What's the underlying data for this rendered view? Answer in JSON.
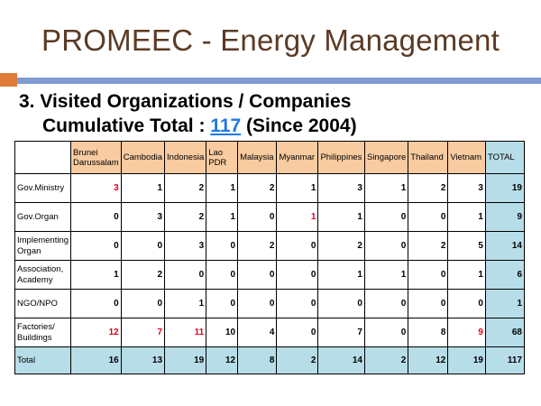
{
  "title": "PROMEEC - Energy Management",
  "subtitle": {
    "line1": "3. Visited Organizations / Companies",
    "line2_prefix": "Cumulative Total : ",
    "count": "117",
    "line2_suffix": " (Since 2004)"
  },
  "colors": {
    "title": "#5b3a24",
    "header_fill": "#f8cba0",
    "total_fill": "#b7dde8",
    "highlight_text": "#e0001a",
    "accent_orange": "#e07b3a",
    "accent_blue": "#7f9bd1",
    "link_blue": "#1f7ae0"
  },
  "table": {
    "columns": [
      "Brunei Darussalam",
      "Cambodia",
      "Indonesia",
      "Lao PDR",
      "Malaysia",
      "Myanmar",
      "Philippines",
      "Singapore",
      "Thailand",
      "Vietnam",
      "TOTAL"
    ],
    "rows": [
      {
        "label": "Gov.Ministry",
        "values": [
          "3",
          "1",
          "2",
          "1",
          "2",
          "1",
          "3",
          "1",
          "2",
          "3",
          "19"
        ],
        "red": [
          0
        ]
      },
      {
        "label": "Gov.Organ",
        "values": [
          "0",
          "3",
          "2",
          "1",
          "0",
          "1",
          "1",
          "0",
          "0",
          "1",
          "9"
        ],
        "red": [
          5
        ]
      },
      {
        "label": "Implementing Organ",
        "values": [
          "0",
          "0",
          "3",
          "0",
          "2",
          "0",
          "2",
          "0",
          "2",
          "5",
          "14"
        ],
        "red": []
      },
      {
        "label": "Association, Academy",
        "values": [
          "1",
          "2",
          "0",
          "0",
          "0",
          "0",
          "1",
          "1",
          "0",
          "1",
          "6"
        ],
        "red": []
      },
      {
        "label": "NGO/NPO",
        "values": [
          "0",
          "0",
          "1",
          "0",
          "0",
          "0",
          "0",
          "0",
          "0",
          "0",
          "1"
        ],
        "red": []
      },
      {
        "label": "Factories/ Buildings",
        "values": [
          "12",
          "7",
          "11",
          "10",
          "4",
          "0",
          "7",
          "0",
          "8",
          "9",
          "68"
        ],
        "red": [
          0,
          1,
          2,
          9
        ]
      },
      {
        "label": "Total",
        "values": [
          "16",
          "13",
          "19",
          "12",
          "8",
          "2",
          "14",
          "2",
          "12",
          "19",
          "117"
        ],
        "red": [],
        "is_total": true
      }
    ]
  }
}
